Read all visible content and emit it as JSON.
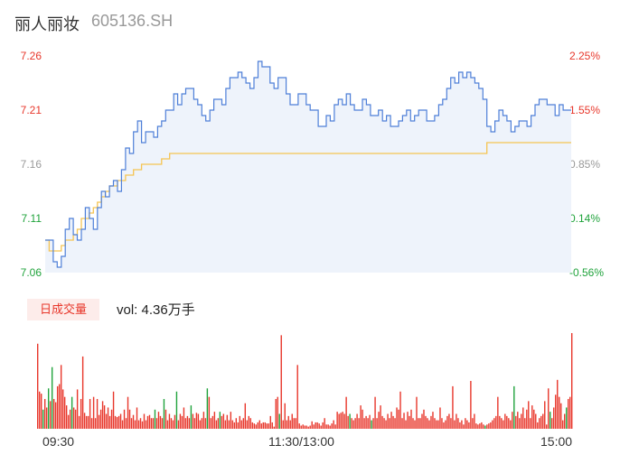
{
  "stock": {
    "name": "丽人丽妆",
    "code": "605136.SH"
  },
  "volume_button": "日成交量",
  "volume_label": "vol: 4.36万手",
  "colors": {
    "price": "#4e7fd8",
    "avg": "#f5c452",
    "up": "#e8372b",
    "down": "#20a33c",
    "fill": "#eef3fb"
  },
  "chart_data": [
    {
      "type": "line",
      "title": "",
      "yticks_left": [
        "7.26",
        "7.21",
        "7.16",
        "7.11",
        "7.06"
      ],
      "yticks_right": [
        "2.25%",
        "1.55%",
        "0.85%",
        "0.14%",
        "-0.56%"
      ],
      "ylim": [
        7.06,
        7.26
      ],
      "x_labels": [
        "09:30",
        "11:30/13:00",
        "15:00"
      ],
      "series": [
        {
          "key": "price",
          "values": [
            7.09,
            7.09,
            7.07,
            7.065,
            7.075,
            7.1,
            7.11,
            7.095,
            7.09,
            7.1,
            7.12,
            7.11,
            7.1,
            7.12,
            7.135,
            7.13,
            7.14,
            7.145,
            7.135,
            7.155,
            7.175,
            7.17,
            7.19,
            7.2,
            7.18,
            7.19,
            7.19,
            7.185,
            7.195,
            7.2,
            7.21,
            7.21,
            7.225,
            7.215,
            7.225,
            7.23,
            7.23,
            7.22,
            7.215,
            7.205,
            7.2,
            7.21,
            7.22,
            7.22,
            7.215,
            7.23,
            7.24,
            7.24,
            7.245,
            7.24,
            7.235,
            7.23,
            7.24,
            7.255,
            7.25,
            7.25,
            7.235,
            7.23,
            7.24,
            7.24,
            7.225,
            7.215,
            7.215,
            7.225,
            7.225,
            7.215,
            7.21,
            7.21,
            7.195,
            7.195,
            7.205,
            7.2,
            7.215,
            7.22,
            7.215,
            7.225,
            7.215,
            7.21,
            7.21,
            7.22,
            7.215,
            7.205,
            7.205,
            7.21,
            7.2,
            7.205,
            7.195,
            7.195,
            7.2,
            7.205,
            7.21,
            7.2,
            7.205,
            7.21,
            7.21,
            7.2,
            7.2,
            7.205,
            7.215,
            7.22,
            7.23,
            7.24,
            7.235,
            7.245,
            7.24,
            7.245,
            7.24,
            7.235,
            7.23,
            7.22,
            7.195,
            7.19,
            7.2,
            7.21,
            7.205,
            7.2,
            7.19,
            7.195,
            7.2,
            7.2,
            7.195,
            7.205,
            7.215,
            7.22,
            7.22,
            7.215,
            7.215,
            7.205,
            7.215,
            7.21,
            7.21
          ],
          "color": "#4e7fd8"
        },
        {
          "key": "average",
          "values": [
            7.09,
            7.08,
            7.08,
            7.08,
            7.085,
            7.09,
            7.09,
            7.095,
            7.1,
            7.11,
            7.11,
            7.115,
            7.12,
            7.125,
            7.13,
            7.135,
            7.14,
            7.14,
            7.145,
            7.145,
            7.15,
            7.15,
            7.155,
            7.155,
            7.16,
            7.16,
            7.16,
            7.16,
            7.16,
            7.165,
            7.165,
            7.17,
            7.17,
            7.17,
            7.17,
            7.17,
            7.17,
            7.17,
            7.17,
            7.17,
            7.17,
            7.17,
            7.17,
            7.17,
            7.17,
            7.17,
            7.17,
            7.17,
            7.17,
            7.17,
            7.17,
            7.17,
            7.17,
            7.17,
            7.17,
            7.17,
            7.17,
            7.17,
            7.17,
            7.17,
            7.17,
            7.17,
            7.17,
            7.17,
            7.17,
            7.17,
            7.17,
            7.17,
            7.17,
            7.17,
            7.17,
            7.17,
            7.17,
            7.17,
            7.17,
            7.17,
            7.17,
            7.17,
            7.17,
            7.17,
            7.17,
            7.17,
            7.17,
            7.17,
            7.17,
            7.17,
            7.17,
            7.17,
            7.17,
            7.17,
            7.17,
            7.17,
            7.17,
            7.17,
            7.17,
            7.17,
            7.17,
            7.17,
            7.17,
            7.17,
            7.17,
            7.17,
            7.17,
            7.17,
            7.17,
            7.17,
            7.17,
            7.17,
            7.17,
            7.17,
            7.18,
            7.18,
            7.18,
            7.18,
            7.18,
            7.18,
            7.18,
            7.18,
            7.18,
            7.18,
            7.18,
            7.18,
            7.18,
            7.18,
            7.18,
            7.18,
            7.18,
            7.18,
            7.18,
            7.18,
            7.18
          ],
          "color": "#f5c452"
        }
      ]
    },
    {
      "type": "bar",
      "title": "日成交量",
      "values": [
        80,
        35,
        33,
        18,
        28,
        20,
        38,
        26,
        58,
        28,
        25,
        40,
        42,
        60,
        37,
        30,
        22,
        13,
        18,
        30,
        20,
        18,
        37,
        12,
        28,
        68,
        15,
        12,
        12,
        28,
        10,
        30,
        10,
        28,
        13,
        18,
        26,
        22,
        14,
        20,
        12,
        18,
        35,
        12,
        11,
        12,
        14,
        8,
        18,
        10,
        30,
        18,
        10,
        13,
        8,
        20,
        8,
        10,
        7,
        14,
        8,
        12,
        13,
        10,
        10,
        18,
        10,
        16,
        12,
        10,
        28,
        18,
        8,
        14,
        10,
        8,
        13,
        35,
        8,
        14,
        12,
        20,
        10,
        12,
        10,
        22,
        14,
        10,
        15,
        14,
        8,
        10,
        16,
        10,
        38,
        30,
        10,
        12,
        16,
        8,
        10,
        16,
        12,
        14,
        8,
        13,
        8,
        16,
        8,
        6,
        10,
        6,
        12,
        8,
        10,
        24,
        8,
        12,
        10,
        6,
        5,
        4,
        6,
        8,
        5,
        6,
        6,
        5,
        5,
        12,
        6,
        2,
        28,
        30,
        14,
        88,
        8,
        24,
        8,
        12,
        8,
        14,
        10,
        10,
        60,
        5,
        3,
        4,
        3,
        3,
        2,
        3,
        7,
        4,
        6,
        6,
        5,
        3,
        6,
        10,
        4,
        4,
        3,
        5,
        8,
        4,
        16,
        14,
        15,
        16,
        14,
        30,
        12,
        14,
        10,
        8,
        10,
        14,
        10,
        22,
        18,
        10,
        12,
        10,
        13,
        8,
        10,
        30,
        10,
        16,
        22,
        12,
        10,
        8,
        14,
        10,
        16,
        12,
        10,
        20,
        18,
        35,
        10,
        15,
        8,
        16,
        12,
        18,
        10,
        8,
        30,
        10,
        10,
        14,
        18,
        12,
        10,
        8,
        12,
        16,
        10,
        8,
        8,
        20,
        10,
        6,
        8,
        12,
        14,
        10,
        40,
        8,
        14,
        10,
        6,
        8,
        4,
        10,
        8,
        6,
        45,
        10,
        14,
        5,
        4,
        5,
        6,
        4,
        3,
        4,
        5,
        6,
        8,
        10,
        12,
        30,
        12,
        10,
        8,
        14,
        12,
        10,
        8,
        16,
        40,
        12,
        16,
        10,
        14,
        20,
        10,
        18,
        26,
        10,
        22,
        18,
        14,
        6,
        10,
        12,
        14,
        26,
        4,
        38,
        16,
        10,
        20,
        32,
        46,
        30,
        24,
        8,
        14,
        20,
        28,
        30,
        90
      ],
      "colors": [
        "#e8372b",
        "#e8372b",
        "#e8372b",
        "#20a33c",
        "#e8372b",
        "#e8372b",
        "#20a33c",
        "#e8372b",
        "#20a33c",
        "#e8372b",
        "#e8372b",
        "#e8372b",
        "#e8372b",
        "#e8372b",
        "#e8372b",
        "#e8372b",
        "#e8372b",
        "#e8372b",
        "#e8372b",
        "#20a33c",
        "#e8372b",
        "#e8372b",
        "#e8372b",
        "#e8372b",
        "#e8372b",
        "#e8372b",
        "#e8372b",
        "#e8372b",
        "#e8372b",
        "#e8372b",
        "#e8372b",
        "#e8372b",
        "#e8372b",
        "#e8372b",
        "#e8372b",
        "#e8372b",
        "#e8372b",
        "#e8372b",
        "#e8372b",
        "#e8372b",
        "#e8372b",
        "#e8372b",
        "#e8372b",
        "#e8372b",
        "#e8372b",
        "#e8372b",
        "#e8372b",
        "#e8372b",
        "#e8372b",
        "#e8372b",
        "#e8372b",
        "#e8372b",
        "#e8372b",
        "#e8372b",
        "#e8372b",
        "#e8372b",
        "#e8372b",
        "#e8372b",
        "#e8372b",
        "#e8372b",
        "#e8372b",
        "#e8372b",
        "#e8372b",
        "#e8372b",
        "#e8372b",
        "#20a33c",
        "#e8372b",
        "#e8372b",
        "#e8372b",
        "#e8372b",
        "#20a33c",
        "#e8372b",
        "#e8372b",
        "#e8372b",
        "#e8372b",
        "#e8372b",
        "#e8372b",
        "#20a33c",
        "#e8372b",
        "#e8372b",
        "#e8372b",
        "#e8372b",
        "#e8372b",
        "#e8372b",
        "#e8372b",
        "#20a33c",
        "#e8372b",
        "#e8372b",
        "#e8372b",
        "#e8372b",
        "#e8372b",
        "#e8372b",
        "#e8372b",
        "#e8372b",
        "#20a33c",
        "#e8372b",
        "#e8372b",
        "#e8372b",
        "#e8372b",
        "#e8372b",
        "#e8372b",
        "#20a33c",
        "#e8372b",
        "#e8372b",
        "#e8372b",
        "#e8372b",
        "#e8372b",
        "#e8372b",
        "#e8372b",
        "#e8372b",
        "#e8372b",
        "#e8372b",
        "#e8372b",
        "#e8372b",
        "#e8372b",
        "#e8372b",
        "#e8372b",
        "#e8372b",
        "#e8372b",
        "#e8372b",
        "#e8372b",
        "#e8372b",
        "#e8372b",
        "#e8372b",
        "#e8372b",
        "#e8372b",
        "#e8372b",
        "#e8372b",
        "#e8372b",
        "#e8372b",
        "#e8372b",
        "#e8372b",
        "#e8372b",
        "#e8372b",
        "#20a33c",
        "#e8372b",
        "#e8372b",
        "#e8372b",
        "#e8372b",
        "#e8372b",
        "#e8372b",
        "#e8372b",
        "#e8372b",
        "#e8372b",
        "#e8372b",
        "#e8372b",
        "#e8372b",
        "#e8372b",
        "#e8372b",
        "#e8372b",
        "#e8372b",
        "#e8372b",
        "#e8372b",
        "#e8372b",
        "#e8372b",
        "#e8372b",
        "#e8372b",
        "#e8372b",
        "#e8372b",
        "#e8372b",
        "#e8372b",
        "#e8372b",
        "#e8372b",
        "#e8372b",
        "#e8372b",
        "#e8372b",
        "#e8372b",
        "#e8372b",
        "#e8372b",
        "#e8372b",
        "#e8372b",
        "#e8372b",
        "#e8372b",
        "#20a33c",
        "#e8372b",
        "#e8372b",
        "#e8372b",
        "#e8372b",
        "#e8372b",
        "#e8372b",
        "#e8372b",
        "#e8372b",
        "#e8372b",
        "#e8372b",
        "#e8372b",
        "#20a33c",
        "#e8372b",
        "#e8372b",
        "#e8372b",
        "#e8372b",
        "#e8372b",
        "#e8372b",
        "#e8372b",
        "#e8372b",
        "#e8372b",
        "#e8372b",
        "#e8372b",
        "#e8372b",
        "#e8372b",
        "#e8372b",
        "#e8372b",
        "#e8372b",
        "#e8372b",
        "#e8372b",
        "#e8372b",
        "#e8372b",
        "#e8372b",
        "#e8372b",
        "#e8372b",
        "#e8372b",
        "#e8372b",
        "#e8372b",
        "#e8372b",
        "#e8372b",
        "#e8372b",
        "#e8372b",
        "#e8372b",
        "#e8372b",
        "#e8372b",
        "#e8372b",
        "#e8372b",
        "#e8372b",
        "#e8372b",
        "#e8372b",
        "#e8372b",
        "#e8372b",
        "#e8372b",
        "#e8372b",
        "#e8372b",
        "#e8372b",
        "#e8372b",
        "#e8372b",
        "#e8372b",
        "#e8372b",
        "#e8372b",
        "#e8372b",
        "#e8372b",
        "#e8372b",
        "#e8372b",
        "#e8372b",
        "#e8372b",
        "#e8372b",
        "#e8372b",
        "#e8372b",
        "#e8372b",
        "#e8372b",
        "#e8372b",
        "#e8372b",
        "#20a33c",
        "#e8372b",
        "#e8372b",
        "#e8372b",
        "#e8372b",
        "#e8372b",
        "#e8372b",
        "#e8372b",
        "#e8372b",
        "#e8372b",
        "#e8372b",
        "#e8372b",
        "#e8372b",
        "#e8372b",
        "#e8372b",
        "#e8372b",
        "#20a33c",
        "#e8372b",
        "#e8372b",
        "#e8372b",
        "#e8372b",
        "#e8372b",
        "#e8372b",
        "#e8372b",
        "#e8372b",
        "#e8372b",
        "#e8372b",
        "#e8372b",
        "#e8372b",
        "#e8372b",
        "#e8372b",
        "#e8372b",
        "#e8372b",
        "#e8372b",
        "#e8372b",
        "#e8372b",
        "#20a33c",
        "#e8372b",
        "#e8372b",
        "#e8372b",
        "#e8372b",
        "#e8372b",
        "#e8372b",
        "#e8372b",
        "#e8372b",
        "#20a33c",
        "#e8372b",
        "#e8372b",
        "#e8372b",
        "#e8372b",
        "#e8372b",
        "#e8372b",
        "#e8372b",
        "#e8372b",
        "#e8372b",
        "#e8372b",
        "#e8372b",
        "#e8372b",
        "#e8372b",
        "#e8372b",
        "#e8372b",
        "#e8372b",
        "#e8372b",
        "#e8372b",
        "#e8372b",
        "#e8372b",
        "#e8372b",
        "#e8372b",
        "#e8372b",
        "#e8372b",
        "#e8372b"
      ]
    }
  ]
}
